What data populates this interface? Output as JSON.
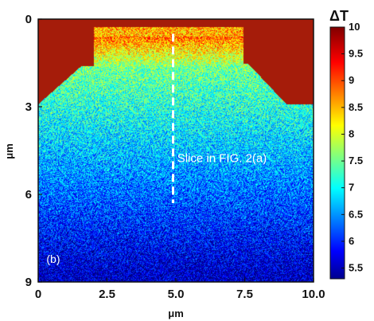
{
  "chart_data": {
    "type": "heatmap",
    "title": "",
    "colorbar_title": "ΔT",
    "xlabel": "μm",
    "ylabel": "μm",
    "xlim": [
      0,
      10.0
    ],
    "ylim": [
      9,
      0
    ],
    "xticks": [
      {
        "value": 0,
        "label": "0"
      },
      {
        "value": 2.5,
        "label": "2.5"
      },
      {
        "value": 5.0,
        "label": "5.0"
      },
      {
        "value": 7.5,
        "label": "7.5"
      },
      {
        "value": 10.0,
        "label": "10.0"
      }
    ],
    "yticks": [
      {
        "value": 0,
        "label": "0"
      },
      {
        "value": 3,
        "label": "3"
      },
      {
        "value": 6,
        "label": "6"
      },
      {
        "value": 9,
        "label": "9"
      }
    ],
    "colorbar": {
      "range": [
        5.3,
        10
      ],
      "ticks": [
        {
          "value": 10,
          "label": "10"
        },
        {
          "value": 9.5,
          "label": "9.5"
        },
        {
          "value": 9,
          "label": "9"
        },
        {
          "value": 8.5,
          "label": "8.5"
        },
        {
          "value": 8,
          "label": "8"
        },
        {
          "value": 7.5,
          "label": "7.5"
        },
        {
          "value": 7,
          "label": "7"
        },
        {
          "value": 6.5,
          "label": "6.5"
        },
        {
          "value": 6,
          "label": "6"
        },
        {
          "value": 5.5,
          "label": "5.5"
        }
      ]
    },
    "slice_line": {
      "x": 4.9,
      "y_start": 0.5,
      "y_end": 6.3
    },
    "annotation": {
      "text": "Slice in FIG. 2(a)",
      "x": 5.05,
      "y": 4.9
    },
    "panel_label": {
      "text": "(b)",
      "x": 0.3,
      "y": 8.35
    }
  }
}
